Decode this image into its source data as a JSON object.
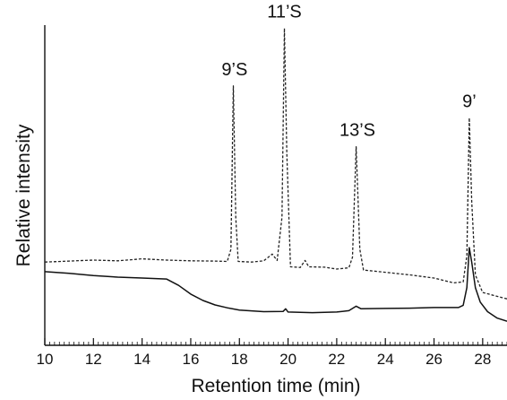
{
  "chart_data": {
    "type": "line",
    "title": "",
    "xlabel": "Retention time (min)",
    "ylabel": "Relative intensity",
    "xlim": [
      10,
      29
    ],
    "ylim": [
      0,
      100
    ],
    "xticks": [
      "10",
      "12",
      "14",
      "16",
      "18",
      "20",
      "22",
      "24",
      "26",
      "28"
    ],
    "grid": false,
    "legend": "none",
    "series": [
      {
        "style": "dashed",
        "color": "#222222",
        "points": [
          [
            10,
            26.0
          ],
          [
            11,
            26.3
          ],
          [
            12,
            26.6
          ],
          [
            13,
            26.4
          ],
          [
            14,
            27.0
          ],
          [
            15,
            26.6
          ],
          [
            16,
            26.4
          ],
          [
            17,
            26.3
          ],
          [
            17.5,
            26.2
          ],
          [
            17.65,
            30
          ],
          [
            17.75,
            81
          ],
          [
            17.85,
            40
          ],
          [
            17.95,
            26.2
          ],
          [
            18.5,
            26.0
          ],
          [
            19.0,
            26.4
          ],
          [
            19.35,
            28.5
          ],
          [
            19.55,
            26.5
          ],
          [
            19.75,
            40
          ],
          [
            19.85,
            99
          ],
          [
            19.95,
            60
          ],
          [
            20.1,
            24.5
          ],
          [
            20.5,
            24.3
          ],
          [
            20.7,
            26.5
          ],
          [
            20.85,
            24.5
          ],
          [
            21.5,
            24.4
          ],
          [
            22.0,
            23.8
          ],
          [
            22.5,
            24.2
          ],
          [
            22.65,
            27.5
          ],
          [
            22.8,
            62
          ],
          [
            22.95,
            30
          ],
          [
            23.1,
            23.5
          ],
          [
            24.0,
            22.8
          ],
          [
            25.0,
            22.0
          ],
          [
            26.0,
            21.0
          ],
          [
            26.8,
            19.5
          ],
          [
            27.2,
            19.8
          ],
          [
            27.35,
            28
          ],
          [
            27.45,
            71
          ],
          [
            27.55,
            45
          ],
          [
            27.7,
            22
          ],
          [
            28.0,
            16.5
          ],
          [
            28.5,
            15.5
          ],
          [
            29,
            14.5
          ]
        ]
      },
      {
        "style": "solid",
        "color": "#111111",
        "points": [
          [
            10,
            23.0
          ],
          [
            11,
            22.5
          ],
          [
            12,
            21.8
          ],
          [
            13,
            21.3
          ],
          [
            14,
            21.0
          ],
          [
            15,
            20.7
          ],
          [
            15.5,
            18.7
          ],
          [
            16,
            16.0
          ],
          [
            16.5,
            14.0
          ],
          [
            17,
            12.6
          ],
          [
            17.5,
            11.7
          ],
          [
            18,
            11.0
          ],
          [
            19,
            10.5
          ],
          [
            19.8,
            10.6
          ],
          [
            19.9,
            11.4
          ],
          [
            20.0,
            10.4
          ],
          [
            21,
            10.2
          ],
          [
            22,
            10.4
          ],
          [
            22.5,
            10.8
          ],
          [
            22.8,
            12.2
          ],
          [
            23.0,
            11.4
          ],
          [
            24,
            11.5
          ],
          [
            25,
            11.6
          ],
          [
            26,
            11.8
          ],
          [
            27.0,
            11.8
          ],
          [
            27.2,
            12.5
          ],
          [
            27.35,
            18
          ],
          [
            27.45,
            30.5
          ],
          [
            27.55,
            26
          ],
          [
            27.7,
            18
          ],
          [
            27.9,
            13.5
          ],
          [
            28.2,
            10.5
          ],
          [
            28.6,
            8.5
          ],
          [
            29,
            7.5
          ]
        ]
      }
    ],
    "annotations": [
      {
        "text": "9’S",
        "x": 17.8,
        "y": 81
      },
      {
        "text": "11’S",
        "x": 19.85,
        "y": 99
      },
      {
        "text": "13’S",
        "x": 22.85,
        "y": 62
      },
      {
        "text": "9’",
        "x": 27.45,
        "y": 71
      }
    ]
  }
}
